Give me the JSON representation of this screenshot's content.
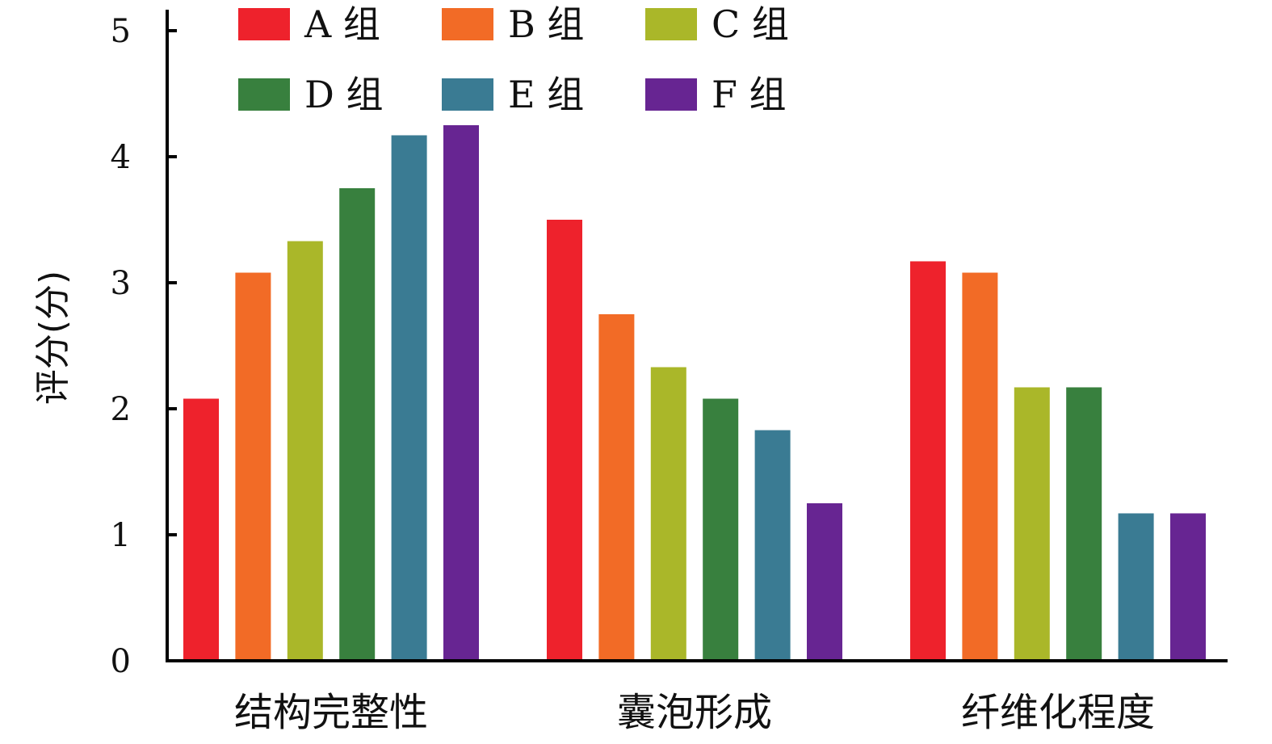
{
  "chart_data": {
    "type": "bar",
    "categories": [
      "结构完整性",
      "囊泡形成",
      "纤维化程度"
    ],
    "ylabel": "评分(分)",
    "ylim": [
      0,
      5
    ],
    "yticks": [
      0,
      1,
      2,
      3,
      4,
      5
    ],
    "legend_position": "top",
    "series": [
      {
        "name": "A 组",
        "color": "#ee222c",
        "values": [
          2.08,
          3.5,
          3.17
        ]
      },
      {
        "name": "B 组",
        "color": "#f26b26",
        "values": [
          3.08,
          2.75,
          3.08
        ]
      },
      {
        "name": "C 组",
        "color": "#aab729",
        "values": [
          3.33,
          2.33,
          2.17
        ]
      },
      {
        "name": "D 组",
        "color": "#38803e",
        "values": [
          3.75,
          2.08,
          2.17
        ]
      },
      {
        "name": "E 组",
        "color": "#3a7b93",
        "values": [
          4.17,
          1.83,
          1.17
        ]
      },
      {
        "name": "F 组",
        "color": "#672592",
        "values": [
          4.25,
          1.25,
          1.17
        ]
      }
    ]
  }
}
